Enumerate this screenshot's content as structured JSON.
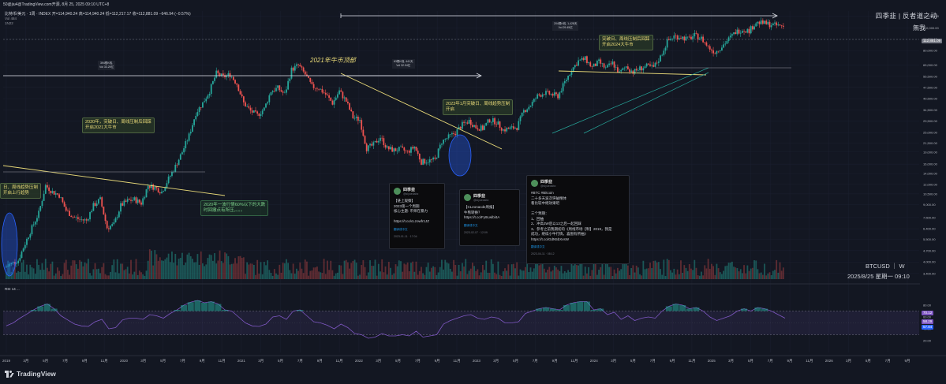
{
  "window": {
    "topbar": "50@jiu4@TradingView.com开源, 8月 25, 2025 09:10 UTC+8"
  },
  "legend": {
    "symbol_line": "比特币/美元 · 1周 · INDEX",
    "ohlc": "开=114,940.24 高=114,940.24 低=112,217.17 收=112,881.09 −646.94 (−0.57%)",
    "vol": "Vol 484",
    "sub2": "1N22"
  },
  "title": {
    "main": "四季韭 | 反者道之动",
    "sub": "無我"
  },
  "symbol_label": "BTCUSD ｜ W",
  "datetime_label": "2025/8/25 星期一 09:10",
  "brand": "TradingView",
  "rsi_label": "RSI 14 ...",
  "colors": {
    "bg": "#131722",
    "up": "#26a69a",
    "down": "#ef5350",
    "annotation": "#e8d978",
    "rsi": "#7e57c2",
    "accent_rule": "#ffffff"
  },
  "annotations": {
    "big_title": "2021年牛市顶部",
    "note_2020": "2020年，突破日、周线压制后回踩\n开启2021大牛市",
    "note_2023": "2023年1月突破日、周线趋势压制\n开启",
    "note_2024": "突破日、周线压制后回踩\n开启2024大牛市",
    "note_left": "日、周线趋势压制\n开启上行趋势",
    "note_green": "2020年一波行情60%以下的大跌\n时回撤点有所压，。。。",
    "pbox_1": "394根K线,\nVol 33.25亿",
    "pbox_2": "63根K线, 441天\nVol 32.94亿",
    "pbox_3": "204根K线, 1,428天\nVol 29.45亿"
  },
  "cards": [
    {
      "name": "四季韭",
      "handle": "@siyuedabz",
      "text": "【链上观察】\n2023第一个周期\n核心主题: 币师在暴力\n\nhttps://t.co/cLzowfr1JZ",
      "translate": "翻译成中文",
      "time": "2023-01-11 · 17:04"
    },
    {
      "name": "四季韭",
      "handle": "@siyuedabz",
      "text": "【CLeonacde周报】\n牛熊转换？\nhttps://t.co/Fy9Lwlbl4A",
      "translate": "翻译成中文",
      "time": "2023-02-07 · 12:09"
    },
    {
      "name": "四季韭",
      "handle": "@siyuedabz",
      "text": "#BTC #Bitcoin\n二十多天波次突破精体\n看比较中继效果吧\n\n三个预期：\n1、回抽\n2、冲高3W后以13之后一起回踩\n3、参考之前我期初的《周线市场【制】2019，我是\n成功，继续小牛行情，喜图有所抽》\nhttps://t.co/GdN5bXvsW",
      "translate": "翻译成中文",
      "time": "2023-04-11 · 08:12"
    }
  ],
  "y_axis_ticks": [
    "130,000.00",
    "110,000.00",
    "94,000.00",
    "80,000.00",
    "65,000.00",
    "55,500.00",
    "47,500.00",
    "40,500.00",
    "34,500.00",
    "29,500.00",
    "25,000.00",
    "21,500.00",
    "19,000.00",
    "16,000.00",
    "14,000.00",
    "12,000.00",
    "10,500.00",
    "9,000.00",
    "7,500.00",
    "6,400.00",
    "5,500.00",
    "4,700.00",
    "4,000.00",
    "3,400.00"
  ],
  "rsi_ticks": [
    "80.00",
    "60.00",
    "40.00",
    "20.00"
  ],
  "price_tags": {
    "last": "112,881.09",
    "rsi_a": "70.12",
    "rsi_b": "58.29",
    "rsi_c": "57.84"
  },
  "x_axis_ticks": [
    "2019",
    "3月",
    "5月",
    "7月",
    "9月",
    "11月",
    "2020",
    "3月",
    "5月",
    "7月",
    "9月",
    "11月",
    "2021",
    "3月",
    "5月",
    "7月",
    "9月",
    "11月",
    "2022",
    "3月",
    "5月",
    "7月",
    "9月",
    "11月",
    "2023",
    "3月",
    "5月",
    "7月",
    "9月",
    "11月",
    "2024",
    "3月",
    "5月",
    "7月",
    "9月",
    "11月",
    "2025",
    "3月",
    "5月",
    "7月",
    "9月",
    "11月",
    "2026",
    "3月",
    "5月",
    "7月",
    "9月"
  ],
  "chart_data": {
    "type": "line",
    "title": "",
    "series": [
      {
        "values": [
          3700,
          3900,
          4100,
          5200,
          6500,
          8000,
          11800,
          10800,
          10300,
          8300,
          7600,
          7300,
          7200,
          8900,
          9700,
          6500,
          6800,
          8900,
          9500,
          9700,
          9200,
          11800,
          11500,
          10800,
          13000,
          15500,
          19000,
          24000,
          33000,
          38000,
          45000,
          58000,
          55000,
          57000,
          50000,
          38000,
          34000,
          32000,
          35000,
          45000,
          47000,
          43000,
          61000,
          65000,
          57000,
          48000,
          47000,
          43000,
          38000,
          45000,
          39000,
          31000,
          30000,
          20000,
          21000,
          23500,
          20000,
          19500,
          19800,
          19000,
          20500,
          16500,
          16800,
          17000,
          22000,
          23500,
          25000,
          28000,
          29500,
          27000,
          26500,
          30000,
          29000,
          26000,
          26500,
          27000,
          34000,
          37000,
          42000,
          44000,
          43000,
          42000,
          51000,
          61000,
          69000,
          71000,
          63000,
          68000,
          62000,
          67000,
          58000,
          64000,
          59000,
          62000,
          64000,
          63000,
          73000,
          91000,
          98000,
          97000,
          94000,
          99000,
          95000,
          84000,
          78000,
          85000,
          94000,
          104000,
          108000,
          106000,
          119000,
          118000,
          116000,
          114000,
          112881
        ]
      }
    ],
    "rsi": [
      45,
      50,
      58,
      65,
      72,
      78,
      82,
      74,
      62,
      55,
      48,
      45,
      44,
      52,
      56,
      40,
      42,
      55,
      58,
      58,
      56,
      64,
      62,
      58,
      66,
      72,
      80,
      85,
      88,
      84,
      86,
      82,
      72,
      70,
      60,
      50,
      45,
      44,
      48,
      60,
      62,
      56,
      70,
      72,
      62,
      52,
      50,
      46,
      40,
      48,
      42,
      32,
      30,
      24,
      26,
      32,
      28,
      28,
      30,
      28,
      36,
      26,
      28,
      30,
      48,
      54,
      58,
      62,
      64,
      58,
      56,
      60,
      58,
      50,
      50,
      52,
      66,
      70,
      74,
      76,
      74,
      72,
      80,
      84,
      86,
      86,
      72,
      74,
      64,
      68,
      56,
      62,
      54,
      58,
      60,
      58,
      70,
      78,
      82,
      80,
      74,
      76,
      70,
      60,
      54,
      58,
      62,
      70,
      74,
      70,
      76,
      74,
      70,
      64,
      58
    ],
    "y_scale": "log",
    "ylim": [
      3000,
      140000
    ],
    "x_range": [
      "2019",
      "2026/9"
    ],
    "rsi_range": [
      0,
      100
    ],
    "grid": true
  }
}
